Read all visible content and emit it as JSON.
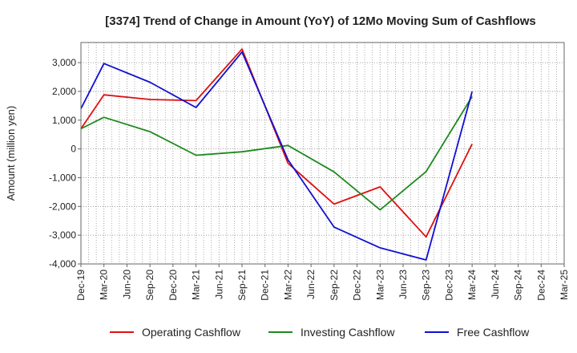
{
  "chart_data": {
    "type": "line",
    "title": "[3374]  Trend of Change in Amount (YoY) of 12Mo Moving Sum of Cashflows",
    "xlabel": "",
    "ylabel": "Amount (million yen)",
    "ylim": [
      -4000,
      3700
    ],
    "yticks": [
      3000,
      2000,
      1000,
      0,
      -1000,
      -2000,
      -3000,
      -4000
    ],
    "ytick_labels": [
      "3,000",
      "2,000",
      "1,000",
      "0",
      "-1,000",
      "-2,000",
      "-3,000",
      "-4,000"
    ],
    "categories": [
      "Dec-19",
      "Mar-20",
      "Jun-20",
      "Sep-20",
      "Dec-20",
      "Mar-21",
      "Jun-21",
      "Sep-21",
      "Dec-21",
      "Mar-22",
      "Jun-22",
      "Sep-22",
      "Dec-22",
      "Mar-23",
      "Jun-23",
      "Sep-23",
      "Dec-23",
      "Mar-24",
      "Jun-24",
      "Sep-24",
      "Dec-24",
      "Mar-25"
    ],
    "grid": true,
    "legend_position": "bottom",
    "series": [
      {
        "name": "Operating Cashflow",
        "color": "#e01010",
        "x": [
          "Dec-19",
          "Mar-20",
          "Sep-20",
          "Mar-21",
          "Sep-21",
          "Mar-22",
          "Sep-22",
          "Mar-23",
          "Sep-23",
          "Mar-24"
        ],
        "values": [
          700,
          1880,
          1720,
          1680,
          3470,
          -500,
          -1920,
          -1320,
          -3060,
          170
        ]
      },
      {
        "name": "Investing Cashflow",
        "color": "#1e8a1e",
        "x": [
          "Dec-19",
          "Mar-20",
          "Sep-20",
          "Mar-21",
          "Sep-21",
          "Mar-22",
          "Sep-22",
          "Mar-23",
          "Sep-23",
          "Mar-24"
        ],
        "values": [
          700,
          1100,
          600,
          -220,
          -100,
          120,
          -800,
          -2120,
          -790,
          1820
        ]
      },
      {
        "name": "Free Cashflow",
        "color": "#1010d0",
        "x": [
          "Dec-19",
          "Mar-20",
          "Sep-20",
          "Mar-21",
          "Sep-21",
          "Mar-22",
          "Sep-22",
          "Mar-23",
          "Sep-23",
          "Mar-24"
        ],
        "values": [
          1400,
          2970,
          2320,
          1440,
          3370,
          -380,
          -2720,
          -3440,
          -3860,
          1990
        ]
      }
    ]
  }
}
